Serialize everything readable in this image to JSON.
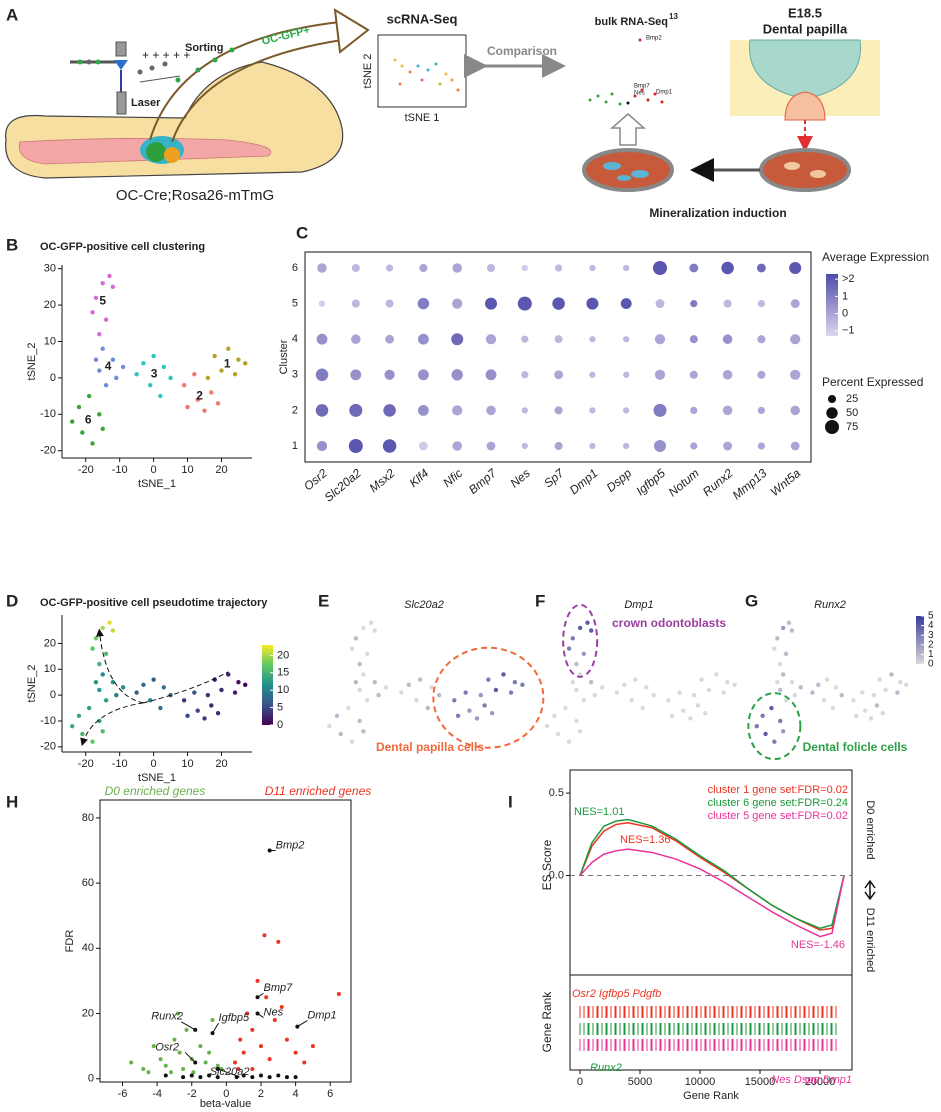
{
  "panels": [
    "A",
    "B",
    "C",
    "D",
    "E",
    "F",
    "G",
    "H",
    "I"
  ],
  "panel_a": {
    "sorting": "Sorting",
    "gfp": "OC-GFP+",
    "laser": "Laser",
    "mouse": "OC-Cre;Rosa26-mTmG",
    "scrna": "scRNA-Seq",
    "tsne2": "tSNE 2",
    "tsne1": "tSNE 1",
    "comparison": "Comparison",
    "bulk": "bulk RNA-Seq",
    "bulk_ref": "13",
    "stage": "E18.5",
    "tissue": "Dental papilla",
    "genes": [
      "Bmp2",
      "Bmp7",
      "Nes",
      "Dmp1"
    ],
    "induction": "Mineralization induction"
  },
  "chart_data": [
    {
      "type": "scatter",
      "title": "OC-GFP-positive cell clustering",
      "xlabel": "tSNE_1",
      "ylabel": "tSNE_2",
      "xlim": [
        -27,
        29
      ],
      "ylim": [
        -22,
        31
      ],
      "xticks": [
        -20,
        -10,
        0,
        10,
        20
      ],
      "yticks": [
        -20,
        -10,
        0,
        10,
        20,
        30
      ],
      "series": [
        {
          "name": "1",
          "color": "#b5a326",
          "x": [
            18,
            22,
            25,
            20,
            24,
            27,
            16
          ],
          "y": [
            6,
            8,
            5,
            2,
            1,
            4,
            0
          ]
        },
        {
          "name": "2",
          "color": "#f07a6a",
          "x": [
            9,
            13,
            17,
            10,
            15,
            19,
            12
          ],
          "y": [
            -2,
            -6,
            -4,
            -8,
            -9,
            -7,
            1
          ]
        },
        {
          "name": "3",
          "color": "#2ec4c0",
          "x": [
            -3,
            0,
            3,
            5,
            -1,
            2,
            -5
          ],
          "y": [
            4,
            6,
            3,
            0,
            -2,
            -5,
            1
          ]
        },
        {
          "name": "4",
          "color": "#6b8fd4",
          "x": [
            -15,
            -12,
            -16,
            -11,
            -14,
            -9,
            -17
          ],
          "y": [
            8,
            5,
            2,
            0,
            -2,
            3,
            5
          ]
        },
        {
          "name": "5",
          "color": "#d46bd4",
          "x": [
            -13,
            -15,
            -17,
            -18,
            -14,
            -16,
            -12
          ],
          "y": [
            28,
            26,
            22,
            18,
            16,
            12,
            25
          ]
        },
        {
          "name": "6",
          "color": "#3aa33a",
          "x": [
            -22,
            -19,
            -16,
            -21,
            -18,
            -15,
            -24
          ],
          "y": [
            -8,
            -5,
            -10,
            -15,
            -18,
            -14,
            -12
          ]
        }
      ]
    },
    {
      "type": "dot",
      "ylabel": "Cluster",
      "categories": [
        "Osr2",
        "Slc20a2",
        "Msx2",
        "Klf4",
        "Nfic",
        "Bmp7",
        "Nes",
        "Sp7",
        "Dmp1",
        "Dspp",
        "Igfbp5",
        "Notum",
        "Runx2",
        "Mmp13",
        "Wnt5a"
      ],
      "series": [
        {
          "name": "1",
          "values": [
            40,
            75,
            70,
            30,
            35,
            30,
            15,
            25,
            15,
            15,
            55,
            20,
            30,
            20,
            30
          ],
          "expression": [
            0.5,
            2,
            2,
            -1,
            0,
            0,
            -0.5,
            0,
            -0.5,
            -0.5,
            0.5,
            0,
            0,
            0,
            0
          ]
        },
        {
          "name": "2",
          "values": [
            60,
            65,
            60,
            45,
            40,
            35,
            15,
            25,
            15,
            15,
            65,
            20,
            35,
            20,
            35
          ],
          "expression": [
            1.5,
            1.5,
            1.5,
            0.5,
            0,
            0,
            -0.5,
            0,
            -0.5,
            -0.5,
            1,
            0,
            0,
            0,
            0
          ]
        },
        {
          "name": "3",
          "values": [
            60,
            45,
            40,
            45,
            50,
            45,
            20,
            30,
            15,
            15,
            40,
            25,
            35,
            25,
            40
          ],
          "expression": [
            1,
            0.5,
            0.5,
            0.5,
            0.5,
            0.5,
            -0.5,
            0,
            -0.5,
            -0.5,
            0,
            0,
            0,
            0,
            0
          ]
        },
        {
          "name": "4",
          "values": [
            45,
            35,
            30,
            45,
            55,
            40,
            20,
            25,
            15,
            15,
            40,
            25,
            35,
            25,
            40
          ],
          "expression": [
            0.5,
            0,
            0,
            0.5,
            1.5,
            0,
            -0.5,
            -0.5,
            -0.5,
            -0.5,
            0,
            0.5,
            0.5,
            0,
            0
          ]
        },
        {
          "name": "5",
          "values": [
            15,
            25,
            25,
            50,
            40,
            55,
            75,
            60,
            55,
            45,
            30,
            20,
            25,
            20,
            30
          ],
          "expression": [
            -1,
            -0.5,
            -0.5,
            1,
            0,
            2,
            2,
            2,
            2,
            2,
            -0.5,
            1,
            -0.5,
            -0.5,
            0
          ]
        },
        {
          "name": "6",
          "values": [
            35,
            25,
            20,
            25,
            35,
            25,
            15,
            20,
            15,
            15,
            75,
            30,
            60,
            30,
            55
          ],
          "expression": [
            0,
            -0.5,
            -0.5,
            0,
            0,
            -0.5,
            -1,
            -0.5,
            -0.5,
            -0.5,
            2,
            1,
            2,
            1.5,
            2
          ]
        }
      ],
      "color_legend_title": "Average Expression",
      "clim": [
        -1.3,
        2.3
      ],
      "cticks": [
        {
          "value": 2,
          "label": ">2"
        },
        1,
        0,
        {
          "value": -1,
          "label": "−1"
        }
      ],
      "colors": [
        "#dcd8ee",
        "#4f4aa8"
      ],
      "size_legend_title": "Percent Expressed",
      "size_ticks": [
        25,
        50,
        75
      ]
    },
    {
      "type": "pseudotime",
      "title": "OC-GFP-positive cell pseudotime trajectory",
      "xlabel": "tSNE_1",
      "ylabel": "tSNE_2",
      "xlim": [
        -27,
        29
      ],
      "ylim": [
        -22,
        31
      ],
      "xticks": [
        -20,
        -10,
        0,
        10,
        20
      ],
      "yticks": [
        -20,
        -10,
        0,
        10,
        20
      ],
      "values": [
        [
          1,
          2,
          1,
          3,
          2,
          0,
          4
        ],
        [
          4,
          5,
          3,
          5,
          4,
          3,
          6
        ],
        [
          8,
          7,
          9,
          8,
          10,
          9,
          7
        ],
        [
          11,
          12,
          12,
          10,
          13,
          11,
          12
        ],
        [
          22,
          20,
          18,
          17,
          16,
          15,
          21
        ],
        [
          14,
          13,
          13,
          15,
          17,
          16,
          14
        ]
      ],
      "clim": [
        0,
        23
      ],
      "cticks": [
        0,
        5,
        10,
        15,
        20
      ],
      "colors": [
        "#440154",
        "#3b528b",
        "#21908d",
        "#5dc963",
        "#fde725"
      ]
    },
    {
      "type": "feature",
      "title": "Slc20a2",
      "annotation": "Dental papilla cells",
      "annotation_color": "#f06a3c",
      "values": [
        [
          3,
          4,
          3,
          4,
          3,
          3,
          2
        ],
        [
          3,
          2,
          3,
          3,
          2,
          2,
          3
        ],
        [
          1,
          1,
          0,
          1,
          0,
          1,
          0
        ],
        [
          0,
          1,
          0,
          1,
          0,
          0,
          1
        ],
        [
          0,
          0,
          1,
          0,
          0,
          1,
          0
        ],
        [
          1,
          0,
          1,
          1,
          0,
          1,
          0
        ]
      ],
      "clim": [
        0,
        5
      ],
      "colors": [
        "#d9d9d9",
        "#3c3c9c"
      ]
    },
    {
      "type": "feature",
      "title": "Dmp1",
      "annotation": "crown odontoblasts",
      "annotation_color": "#9b3fa0",
      "values": [
        [
          0,
          0,
          0,
          0,
          0,
          0,
          0
        ],
        [
          0,
          0,
          0,
          0,
          0,
          0,
          0
        ],
        [
          0,
          0,
          0,
          0,
          0,
          0,
          0
        ],
        [
          0,
          1,
          0,
          0,
          0,
          0,
          0
        ],
        [
          4,
          4,
          3,
          3,
          2,
          1,
          4
        ],
        [
          0,
          0,
          0,
          0,
          0,
          0,
          0
        ]
      ],
      "clim": [
        0,
        5
      ],
      "colors": [
        "#d9d9d9",
        "#3c3c9c"
      ]
    },
    {
      "type": "feature",
      "title": "Runx2",
      "annotation": "Dental folicle cells",
      "annotation_color": "#2ca048",
      "values": [
        [
          0,
          1,
          0,
          0,
          1,
          0,
          0
        ],
        [
          0,
          0,
          1,
          0,
          0,
          0,
          0
        ],
        [
          1,
          0,
          0,
          1,
          0,
          0,
          1
        ],
        [
          1,
          0,
          1,
          0,
          0,
          1,
          0
        ],
        [
          1,
          2,
          1,
          0,
          1,
          0,
          1
        ],
        [
          3,
          4,
          3,
          4,
          3,
          2,
          3
        ]
      ],
      "clim": [
        0,
        5
      ],
      "cticks": [
        0,
        1,
        2,
        3,
        4,
        5
      ],
      "colors": [
        "#d9d9d9",
        "#3c3c9c"
      ]
    },
    {
      "type": "volcano",
      "xlabel": "beta-value",
      "ylabel": "FDR",
      "xlim": [
        -7.3,
        7.2
      ],
      "ylim": [
        -1,
        85.5
      ],
      "xticks": [
        -6,
        -4,
        -2,
        0,
        2,
        4,
        6
      ],
      "yticks": [
        0,
        20,
        40,
        60,
        80
      ],
      "series": [
        {
          "name": "D0 enriched genes",
          "color": "#6ab04c",
          "x": [
            -5.5,
            -4.8,
            -4.2,
            -3.8,
            -3.5,
            -3,
            -2.7,
            -2.3,
            -2,
            -1.5,
            -1.2,
            -0.8,
            -0.5,
            -3.2,
            -2.5,
            -1.9,
            -1,
            -0.3,
            -4.5,
            -2.8
          ],
          "y": [
            5,
            3,
            10,
            6,
            4,
            12,
            8,
            15,
            6,
            10,
            5,
            18,
            4,
            2,
            3,
            2,
            8,
            3,
            2,
            20
          ]
        },
        {
          "name": "D11 enriched genes",
          "color": "#ee3322",
          "x": [
            0.5,
            0.8,
            1,
            1.2,
            1.5,
            1.8,
            2,
            2.2,
            2.5,
            2.8,
            3,
            3.5,
            4,
            4.5,
            5,
            6.5,
            1.5,
            2.3,
            0.7,
            3.2
          ],
          "y": [
            5,
            12,
            8,
            20,
            15,
            30,
            10,
            44,
            6,
            18,
            42,
            12,
            8,
            5,
            10,
            26,
            3,
            25,
            3,
            22
          ]
        },
        {
          "color": "#111111",
          "x": [
            -3.5,
            -2.5,
            -2,
            -1.5,
            -1,
            -0.5,
            0.6,
            1,
            1.5,
            2,
            2.5,
            3,
            3.5,
            4
          ],
          "y": [
            1,
            0.5,
            1,
            0.5,
            1,
            0.5,
            0.5,
            1,
            0.5,
            1,
            0.5,
            1,
            0.5,
            0.5
          ]
        }
      ],
      "annotations": [
        {
          "text": "Bmp2",
          "x": 2.5,
          "y": 70
        },
        {
          "text": "Bmp7",
          "x": 1.8,
          "y": 25
        },
        {
          "text": "Nes",
          "x": 1.8,
          "y": 20
        },
        {
          "text": "Dmp1",
          "x": 4.1,
          "y": 16
        },
        {
          "text": "Runx2",
          "x": -1.8,
          "y": 15
        },
        {
          "text": "Igfbp5",
          "x": -0.8,
          "y": 14
        },
        {
          "text": "Osr2",
          "x": -1.8,
          "y": 5
        },
        {
          "text": "Slc20a2",
          "x": -0.5,
          "y": 3
        }
      ]
    },
    {
      "type": "line",
      "ylabel": "ES Score",
      "xlabel": "Gene Rank",
      "rank_label": "Gene Rank",
      "x": [
        0,
        1000,
        2000,
        3000,
        4000,
        6000,
        8000,
        10000,
        12000,
        14000,
        16000,
        18000,
        20000,
        21000,
        22000
      ],
      "xlim": [
        -833,
        22667
      ],
      "ylim": [
        -0.5,
        0.64
      ],
      "xticks": [
        0,
        5000,
        10000,
        15000,
        20000
      ],
      "yticks": [
        {
          "value": 0,
          "label": "0.0"
        },
        0.5
      ],
      "series": [
        {
          "name": "cluster 1 gene set:FDR=0.02",
          "color": "#ee3322",
          "nes": "NES=1.36",
          "genes": "Osr2 Igfbp5 Pdgfb",
          "values": [
            0,
            0.18,
            0.27,
            0.31,
            0.32,
            0.29,
            0.21,
            0.11,
            0.02,
            -0.08,
            -0.18,
            -0.26,
            -0.33,
            -0.32,
            0
          ]
        },
        {
          "name": "cluster 6 gene set:FDR=0.24",
          "color": "#1a9a3c",
          "nes": "NES=1.01",
          "genes": "Runx2",
          "values": [
            0,
            0.2,
            0.3,
            0.33,
            0.34,
            0.3,
            0.22,
            0.12,
            0.03,
            -0.08,
            -0.18,
            -0.26,
            -0.32,
            -0.3,
            0
          ]
        },
        {
          "name": "cluster 5 gene set:FDR=0.02",
          "color": "#e8339a",
          "nes": "NES=-1.46",
          "genes": "Nes Dspp Dmp1",
          "values": [
            0,
            0.08,
            0.13,
            0.15,
            0.16,
            0.14,
            0.1,
            0.04,
            -0.04,
            -0.13,
            -0.22,
            -0.3,
            -0.37,
            -0.35,
            0
          ]
        }
      ],
      "top_label": "D0 enriched",
      "bottom_label": "D11 enriched"
    }
  ]
}
